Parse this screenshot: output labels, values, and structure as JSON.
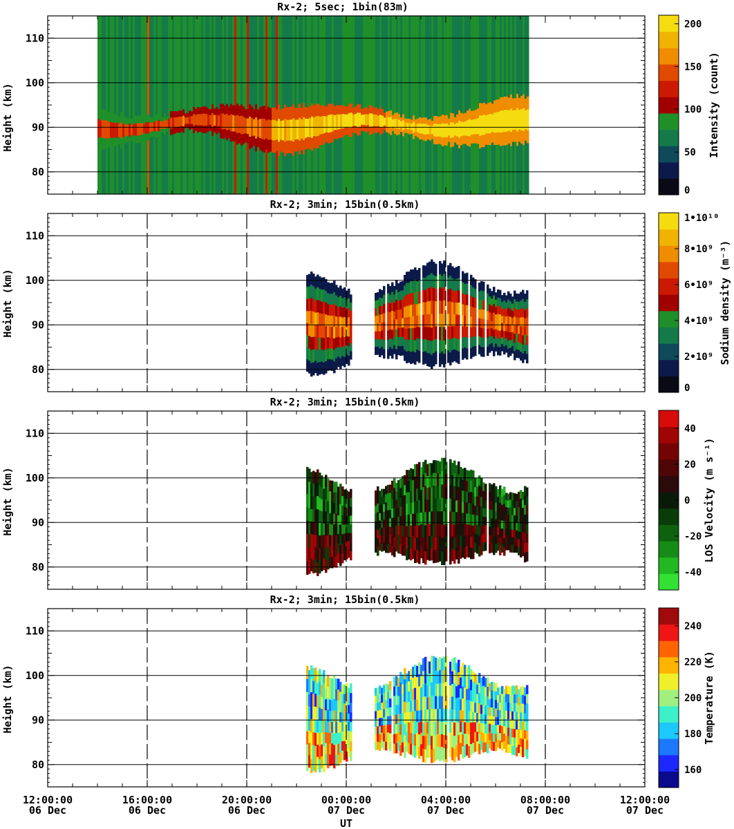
{
  "figure": {
    "xlabel": "UT",
    "x_ticks": [
      {
        "time": "12:00:00",
        "date": "06 Dec"
      },
      {
        "time": "16:00:00",
        "date": "06 Dec"
      },
      {
        "time": "20:00:00",
        "date": "06 Dec"
      },
      {
        "time": "00:00:00",
        "date": "07 Dec"
      },
      {
        "time": "04:00:00",
        "date": "07 Dec"
      },
      {
        "time": "08:00:00",
        "date": "07 Dec"
      },
      {
        "time": "12:00:00",
        "date": "07 Dec"
      }
    ]
  },
  "chart_data": [
    {
      "type": "heatmap",
      "title": "Rx-2;  5sec; 1bin(83m)",
      "ylabel": "Height (km)",
      "xlim_hours": [
        12,
        36
      ],
      "ylim": [
        75,
        115
      ],
      "y_ticks": [
        80,
        90,
        100,
        110
      ],
      "y_gridlines": [
        80,
        90,
        100,
        110
      ],
      "x_dashed_gridlines": [],
      "data_time_range_hours": [
        14.0,
        31.3
      ],
      "layer_center_km": 90.5,
      "colorbar": {
        "label": "Intensity (count)",
        "tick_labels": [
          "0",
          "50",
          "100",
          "150",
          "200"
        ],
        "tick_values": [
          0,
          50,
          100,
          150,
          200
        ],
        "range": [
          0,
          210
        ],
        "colors": [
          "#0a0a16",
          "#0c1a4a",
          "#0e4a5a",
          "#147a4a",
          "#1f8f2a",
          "#a00000",
          "#cc1a00",
          "#e04a00",
          "#f08c00",
          "#f0b400",
          "#f5dc10"
        ]
      }
    },
    {
      "type": "heatmap",
      "title": "Rx-2; 3min; 15bin(0.5km)",
      "ylabel": "Height (km)",
      "xlim_hours": [
        12,
        36
      ],
      "ylim": [
        75,
        115
      ],
      "y_ticks": [
        80,
        90,
        100,
        110
      ],
      "y_gridlines": [
        80,
        90,
        100,
        110
      ],
      "x_dashed_gridlines": [
        16,
        20,
        24,
        28,
        32
      ],
      "data_time_range_hours": [
        22.4,
        31.3
      ],
      "layer_center_km": 91.0,
      "colorbar": {
        "label": "Sodium density (m⁻³)",
        "tick_labels": [
          "0",
          "2•10⁹",
          "4•10⁹",
          "6•10⁹",
          "8•10⁹",
          "1•10¹⁰"
        ],
        "tick_values": [
          0,
          2000000000,
          4000000000,
          6000000000,
          8000000000,
          10000000000
        ],
        "range": [
          0,
          10000000000
        ],
        "colors": [
          "#0a0a16",
          "#0c1a4a",
          "#0e4a5a",
          "#147a4a",
          "#1f8f2a",
          "#a00000",
          "#cc1a00",
          "#e04a00",
          "#f08c00",
          "#f0b400",
          "#f5dc10"
        ]
      }
    },
    {
      "type": "heatmap",
      "title": "Rx-2; 3min; 15bin(0.5km)",
      "ylabel": "Height (km)",
      "xlim_hours": [
        12,
        36
      ],
      "ylim": [
        75,
        115
      ],
      "y_ticks": [
        80,
        90,
        100,
        110
      ],
      "y_gridlines": [
        80,
        90,
        100,
        110
      ],
      "x_dashed_gridlines": [
        16,
        20,
        24,
        28,
        32
      ],
      "data_time_range_hours": [
        22.4,
        31.3
      ],
      "layer_center_km": 91.0,
      "colorbar": {
        "label": "LOS Velocity (m s⁻¹)",
        "tick_labels": [
          "-40",
          "-20",
          "0",
          "20",
          "40"
        ],
        "tick_values": [
          -40,
          -20,
          0,
          20,
          40
        ],
        "range": [
          -50,
          50
        ],
        "colors": [
          "#33e133",
          "#22b822",
          "#168c16",
          "#0e620e",
          "#0a3c0a",
          "#0a1a0a",
          "#2a0a0a",
          "#4e0606",
          "#740404",
          "#a00404",
          "#d80a0a"
        ]
      }
    },
    {
      "type": "heatmap",
      "title": "Rx-2; 3min; 15bin(0.5km)",
      "ylabel": "Height (km)",
      "xlim_hours": [
        12,
        36
      ],
      "ylim": [
        75,
        115
      ],
      "y_ticks": [
        80,
        90,
        100,
        110
      ],
      "y_gridlines": [
        80,
        90,
        100,
        110
      ],
      "x_dashed_gridlines": [
        16,
        20,
        24,
        28,
        32
      ],
      "data_time_range_hours": [
        22.4,
        31.3
      ],
      "layer_center_km": 91.0,
      "colorbar": {
        "label": "Temperature (K)",
        "tick_labels": [
          "160",
          "180",
          "200",
          "220",
          "240"
        ],
        "tick_values": [
          160,
          180,
          200,
          220,
          240
        ],
        "range": [
          150,
          250
        ],
        "colors": [
          "#0a0a8c",
          "#1c28ff",
          "#1c78ff",
          "#1cc8ff",
          "#3cf0c8",
          "#a0f080",
          "#f0f02a",
          "#ffb400",
          "#ff6400",
          "#f01414",
          "#a00a0a"
        ]
      }
    }
  ]
}
